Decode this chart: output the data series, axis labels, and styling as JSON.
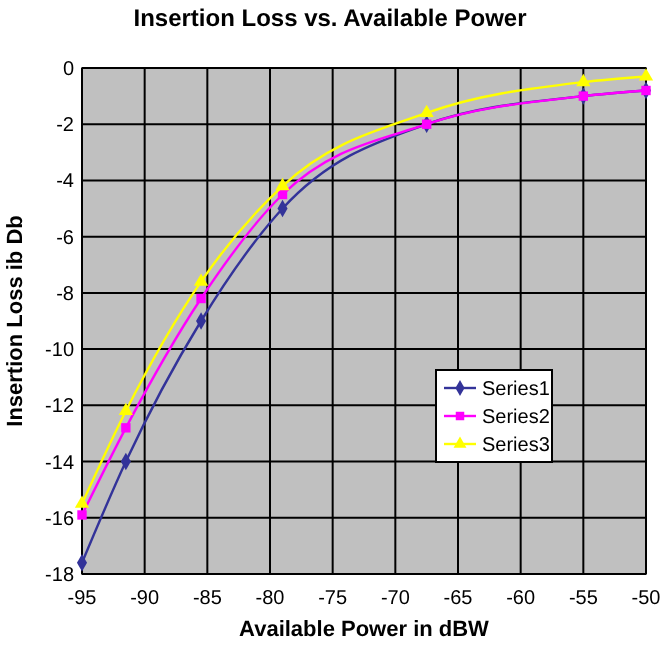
{
  "chart_data": {
    "type": "line",
    "title": "Insertion Loss vs. Available Power",
    "xlabel": "Available Power in dBW",
    "ylabel": "Insertion Loss ib Db",
    "x": [
      -95,
      -91.5,
      -85.5,
      -79,
      -67.5,
      -55,
      -50
    ],
    "series": [
      {
        "name": "Series1",
        "color": "#333399",
        "marker": "diamond",
        "values": [
          -17.6,
          -14,
          -9,
          -5,
          -2,
          -1,
          -0.8
        ]
      },
      {
        "name": "Series2",
        "color": "#ff00ff",
        "marker": "square",
        "values": [
          -15.9,
          -12.8,
          -8.2,
          -4.5,
          -2,
          -1,
          -0.8
        ]
      },
      {
        "name": "Series3",
        "color": "#ffff00",
        "marker": "triangle",
        "values": [
          -15.5,
          -12.2,
          -7.6,
          -4.2,
          -1.6,
          -0.5,
          -0.3
        ]
      }
    ],
    "xlim": [
      -95,
      -50
    ],
    "xticks": [
      -95,
      -90,
      -85,
      -80,
      -75,
      -70,
      -65,
      -60,
      -55,
      -50
    ],
    "ylim": [
      -18,
      0
    ],
    "yticks": [
      -18,
      -16,
      -14,
      -12,
      -10,
      -8,
      -6,
      -4,
      -2,
      0
    ],
    "grid": true,
    "legend": "right"
  }
}
